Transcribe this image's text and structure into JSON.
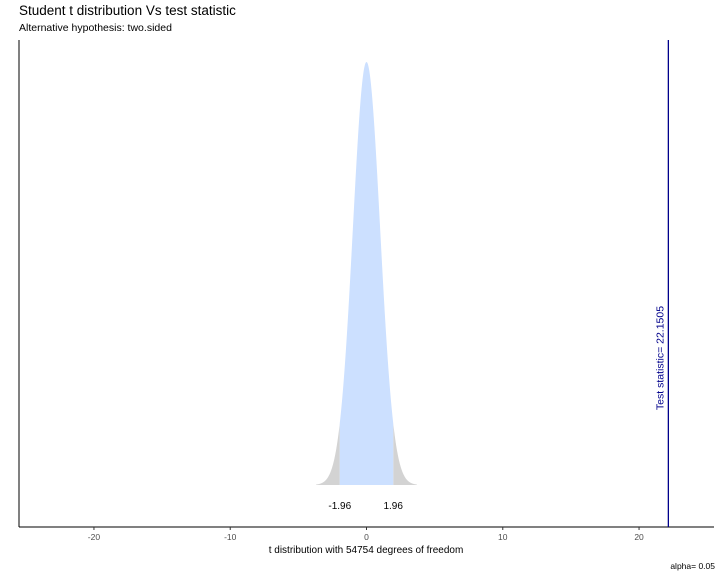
{
  "chart_data": {
    "type": "area",
    "title": "Student t distribution Vs test statistic",
    "subtitle": "Alternative hypothesis: two.sided",
    "xlabel": "t distribution with 54754 degrees of freedom",
    "ylabel": "",
    "xlim": [
      -25.5,
      25.5
    ],
    "ylim": [
      0,
      0.42
    ],
    "x_ticks": [
      -20,
      -10,
      0,
      10,
      20
    ],
    "x_tick_labels": [
      "-20",
      "-10",
      "0",
      "10",
      "20"
    ],
    "degrees_of_freedom": 54754,
    "critical_values": [
      -1.96,
      1.96
    ],
    "critical_labels": [
      "-1.96",
      "1.96"
    ],
    "curve_x_range": [
      -3.7,
      3.7
    ],
    "test_statistic": 22.1505,
    "test_statistic_label": "Test statistic= 22.1505",
    "caption": "alpha= 0.05",
    "grid": false,
    "colors": {
      "acceptance_region": "#cce0ff",
      "rejection_region": "#d3d3d3",
      "test_statistic_line": "#00008b",
      "axis": "#000000"
    }
  }
}
